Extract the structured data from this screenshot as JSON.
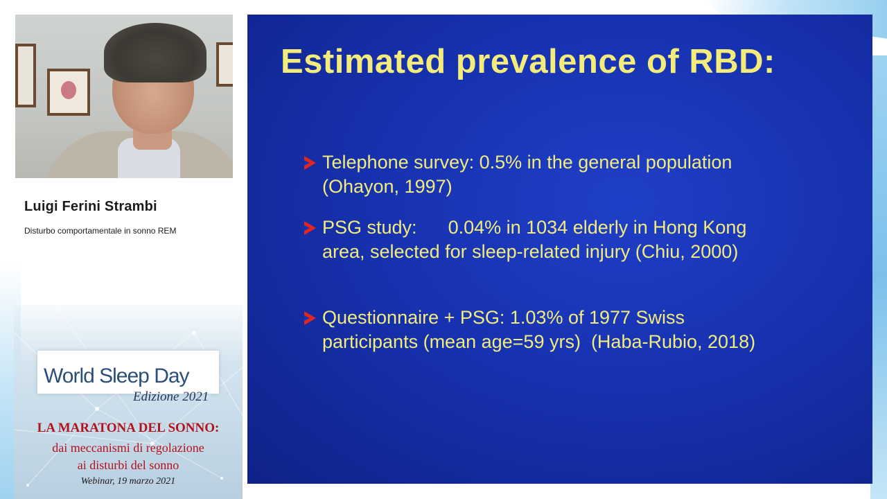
{
  "speaker": {
    "name": "Luigi Ferini Strambi",
    "talk_title": "Disturbo comportamentale in sonno REM"
  },
  "event": {
    "logo_text": "World Sleep Day",
    "edition": "Edizione 2021",
    "title": "LA MARATONA DEL SONNO:",
    "subtitle_line1": "dai meccanismi di regolazione",
    "subtitle_line2": "ai disturbi del sonno",
    "date": "Webinar, 19 marzo 2021"
  },
  "slide": {
    "title": "Estimated prevalence of RBD:",
    "bullets": [
      "Telephone survey:  0.5% in the general population (Ohayon, 1997)",
      "PSG study:      0.04% in 1034 elderly in Hong Kong area, selected for sleep-related injury (Chiu, 2000)",
      "Questionnaire + PSG: 1.03% of 1977 Swiss participants (mean age=59 yrs)  (Haba-Rubio, 2018)"
    ]
  },
  "colors": {
    "slide_background": "#1732b0",
    "slide_text": "#f2ec7c",
    "bullet_arrow": "#e3261f",
    "poster_title": "#b3121c"
  }
}
